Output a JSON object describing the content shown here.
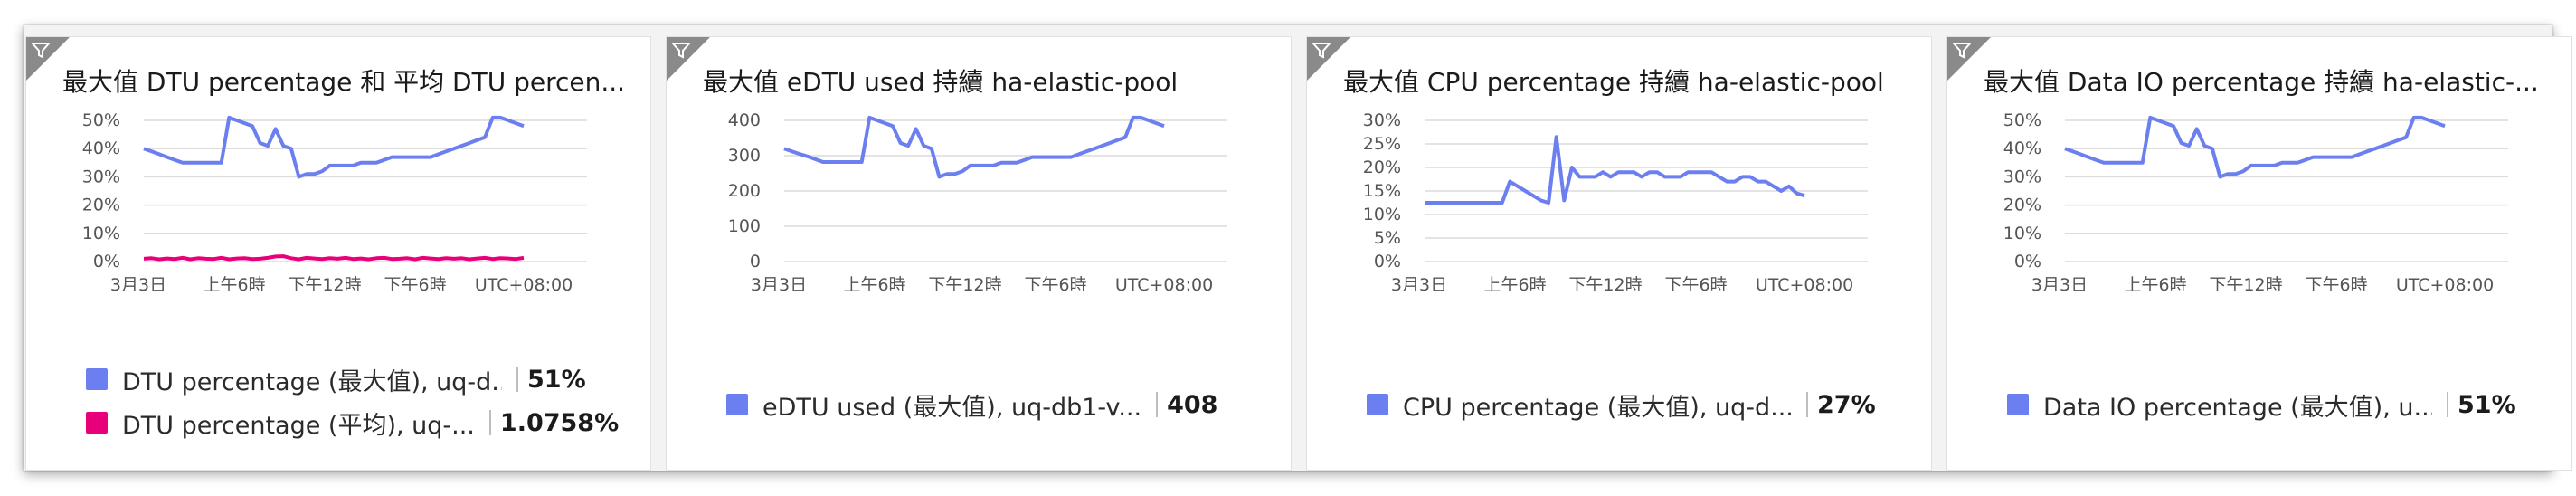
{
  "tiles": [
    {
      "title": "最大值 DTU percentage 和 平均 DTU percen...",
      "filter_icon": "filter-icon",
      "chart_data": {
        "type": "line",
        "y_ticks": [
          "50%",
          "40%",
          "30%",
          "20%",
          "10%",
          "0%"
        ],
        "ylim": [
          0,
          55
        ],
        "x_ticks": [
          "3月3日",
          "上午6時",
          "下午12時",
          "下午6時",
          "UTC+08:00"
        ],
        "series": [
          {
            "name": "DTU percentage (最大值), uq-d...",
            "color": "#6b7ff0",
            "values": [
              40,
              39,
              38,
              37,
              36,
              35,
              35,
              35,
              35,
              35,
              35,
              51,
              50,
              49,
              48,
              42,
              41,
              47,
              41,
              40,
              30,
              31,
              31,
              32,
              34,
              34,
              34,
              34,
              35,
              35,
              35,
              36,
              37,
              37,
              37,
              37,
              37,
              37,
              38,
              39,
              40,
              41,
              42,
              43,
              44,
              51,
              51,
              50,
              49,
              48
            ]
          },
          {
            "name": "DTU percentage (平均), uq-...",
            "color": "#e8007a",
            "values": [
              1,
              1.2,
              0.8,
              1.1,
              0.9,
              1.3,
              0.8,
              1.2,
              1,
              0.9,
              1.3,
              0.8,
              1.1,
              1.2,
              0.9,
              1,
              1.3,
              1.8,
              1.9,
              1.2,
              0.8,
              1.3,
              1.1,
              0.9,
              1.2,
              1,
              1.3,
              0.9,
              1.1,
              0.8,
              1.2,
              1.3,
              0.9,
              1,
              1.2,
              0.8,
              1.3,
              1.1,
              0.9,
              1.2,
              1,
              1.2,
              0.8,
              1.1,
              1.3,
              0.9,
              1.2,
              1.1,
              0.9,
              1.3
            ]
          }
        ]
      },
      "legend": [
        {
          "label": "DTU percentage (最大值), uq-d...",
          "value": "51%",
          "color": "#6b7ff0"
        },
        {
          "label": "DTU percentage (平均), uq-...",
          "value": "1.0758%",
          "color": "#e8007a"
        }
      ]
    },
    {
      "title": "最大值 eDTU used 持續 ha-elastic-pool",
      "filter_icon": "filter-icon",
      "chart_data": {
        "type": "line",
        "y_ticks": [
          "400",
          "300",
          "200",
          "100",
          "0"
        ],
        "ylim": [
          0,
          420
        ],
        "x_ticks": [
          "3月3日",
          "上午6時",
          "下午12時",
          "下午6時",
          "UTC+08:00"
        ],
        "series": [
          {
            "name": "eDTU used (最大值), uq-db1-v...",
            "color": "#6b7ff0",
            "values": [
              320,
              312,
              305,
              298,
              290,
              282,
              282,
              282,
              282,
              282,
              282,
              408,
              400,
              392,
              384,
              336,
              328,
              376,
              328,
              320,
              240,
              248,
              248,
              256,
              272,
              272,
              272,
              272,
              280,
              280,
              280,
              288,
              296,
              296,
              296,
              296,
              296,
              296,
              304,
              312,
              320,
              328,
              336,
              344,
              352,
              408,
              408,
              400,
              392,
              384
            ]
          }
        ]
      },
      "legend": [
        {
          "label": "eDTU used (最大值), uq-db1-v...",
          "value": "408",
          "color": "#6b7ff0"
        }
      ]
    },
    {
      "title": "最大值 CPU percentage 持續 ha-elastic-pool",
      "filter_icon": "filter-icon",
      "chart_data": {
        "type": "line",
        "y_ticks": [
          "30%",
          "25%",
          "20%",
          "15%",
          "10%",
          "5%",
          "0%"
        ],
        "ylim": [
          0,
          30
        ],
        "x_ticks": [
          "3月3日",
          "上午6時",
          "下午12時",
          "下午6時",
          "UTC+08:00"
        ],
        "series": [
          {
            "name": "CPU percentage (最大值), uq-d...",
            "color": "#6b7ff0",
            "values": [
              12.5,
              12.5,
              12.5,
              12.5,
              12.5,
              12.5,
              12.5,
              12.5,
              12.5,
              12.5,
              12.5,
              17,
              16,
              15,
              14,
              13,
              12.5,
              26.5,
              13,
              20,
              18,
              18,
              18,
              19,
              18,
              19,
              19,
              19,
              18,
              19,
              19,
              18,
              18,
              18,
              19,
              19,
              19,
              19,
              18,
              17,
              17,
              18,
              18,
              17,
              17,
              16,
              15,
              16,
              14.5,
              14
            ]
          }
        ]
      },
      "legend": [
        {
          "label": "CPU percentage (最大值), uq-d...",
          "value": "27%",
          "color": "#6b7ff0"
        }
      ]
    },
    {
      "title": "最大值 Data IO percentage 持續 ha-elastic-...",
      "filter_icon": "filter-icon",
      "chart_data": {
        "type": "line",
        "y_ticks": [
          "50%",
          "40%",
          "30%",
          "20%",
          "10%",
          "0%"
        ],
        "ylim": [
          0,
          55
        ],
        "x_ticks": [
          "3月3日",
          "上午6時",
          "下午12時",
          "下午6時",
          "UTC+08:00"
        ],
        "series": [
          {
            "name": "Data IO percentage (最大值), u...",
            "color": "#6b7ff0",
            "values": [
              40,
              39,
              38,
              37,
              36,
              35,
              35,
              35,
              35,
              35,
              35,
              51,
              50,
              49,
              48,
              42,
              41,
              47,
              41,
              40,
              30,
              31,
              31,
              32,
              34,
              34,
              34,
              34,
              35,
              35,
              35,
              36,
              37,
              37,
              37,
              37,
              37,
              37,
              38,
              39,
              40,
              41,
              42,
              43,
              44,
              51,
              51,
              50,
              49,
              48
            ]
          }
        ]
      },
      "legend": [
        {
          "label": "Data IO percentage (最大值), u...",
          "value": "51%",
          "color": "#6b7ff0"
        }
      ]
    }
  ]
}
